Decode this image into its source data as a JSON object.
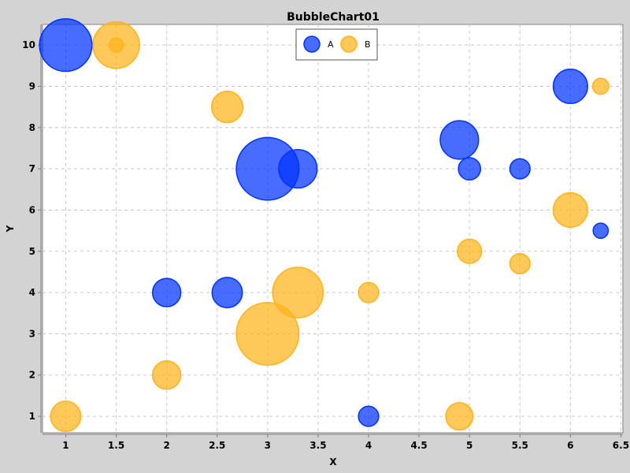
{
  "chart_data": {
    "type": "scatter",
    "title": "BubbleChart01",
    "xlabel": "X",
    "ylabel": "Y",
    "xlim": [
      0.77,
      6.52
    ],
    "ylim": [
      0.6,
      10.5
    ],
    "x_ticks": [
      1,
      1.5,
      2,
      2.5,
      3,
      3.5,
      4,
      4.5,
      5,
      5.5,
      6,
      6.5
    ],
    "x_tick_labels": [
      "1",
      "1.5",
      "2",
      "2.5",
      "3",
      "3.5",
      "4",
      "4.5",
      "5",
      "5.5",
      "6",
      "6.5"
    ],
    "y_ticks": [
      1,
      2,
      3,
      4,
      5,
      6,
      7,
      8,
      9,
      10
    ],
    "y_tick_labels": [
      "1",
      "2",
      "3",
      "4",
      "5",
      "6",
      "7",
      "8",
      "9",
      "10"
    ],
    "grid": true,
    "legend_position": "top-center",
    "bubble_size_unit": "x-axis units (diameter)",
    "series": [
      {
        "name": "A",
        "color": "#0033ff",
        "points": [
          {
            "x": 1.0,
            "y": 10.0,
            "size": 0.52
          },
          {
            "x": 3.0,
            "y": 7.0,
            "size": 0.62
          },
          {
            "x": 3.3,
            "y": 7.0,
            "size": 0.38
          },
          {
            "x": 4.9,
            "y": 7.7,
            "size": 0.38
          },
          {
            "x": 5.0,
            "y": 7.0,
            "size": 0.22
          },
          {
            "x": 5.5,
            "y": 7.0,
            "size": 0.2
          },
          {
            "x": 6.0,
            "y": 9.0,
            "size": 0.34
          },
          {
            "x": 6.3,
            "y": 5.5,
            "size": 0.15
          },
          {
            "x": 2.0,
            "y": 4.0,
            "size": 0.28
          },
          {
            "x": 2.6,
            "y": 4.0,
            "size": 0.3
          },
          {
            "x": 4.0,
            "y": 1.0,
            "size": 0.2
          }
        ]
      },
      {
        "name": "B",
        "color": "#ffb31a",
        "points": [
          {
            "x": 1.5,
            "y": 10.0,
            "size": 0.46
          },
          {
            "x": 1.5,
            "y": 10.0,
            "size": 0.14
          },
          {
            "x": 2.6,
            "y": 8.5,
            "size": 0.31
          },
          {
            "x": 3.0,
            "y": 3.0,
            "size": 0.62
          },
          {
            "x": 3.3,
            "y": 4.0,
            "size": 0.5
          },
          {
            "x": 4.0,
            "y": 4.0,
            "size": 0.2
          },
          {
            "x": 5.0,
            "y": 5.0,
            "size": 0.24
          },
          {
            "x": 5.5,
            "y": 4.7,
            "size": 0.2
          },
          {
            "x": 6.0,
            "y": 6.0,
            "size": 0.34
          },
          {
            "x": 6.3,
            "y": 9.0,
            "size": 0.16
          },
          {
            "x": 2.0,
            "y": 2.0,
            "size": 0.28
          },
          {
            "x": 1.0,
            "y": 1.0,
            "size": 0.3
          },
          {
            "x": 4.9,
            "y": 1.0,
            "size": 0.27
          }
        ]
      }
    ]
  }
}
